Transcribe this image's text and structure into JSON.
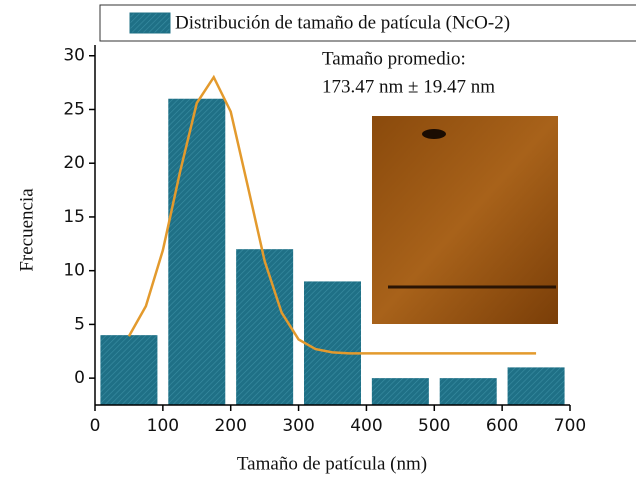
{
  "chart_data": {
    "type": "histogram",
    "legend_label": "Distribución de tamaño de patícula (NcO-2)",
    "annotation_lines": [
      "Tamaño promedio:",
      "173.47 nm ± 19.47 nm"
    ],
    "xlabel": "Tamaño de patícula  (nm)",
    "ylabel": "Frecuencia",
    "bins": [
      0,
      100,
      200,
      300,
      400,
      500,
      600,
      700
    ],
    "values": [
      4,
      26,
      12,
      9,
      0,
      0,
      1
    ],
    "color": "#1f7086",
    "fit_curve": {
      "color": "#e39a2d",
      "x": [
        50,
        75,
        100,
        125,
        150,
        175,
        200,
        225,
        250,
        275,
        300,
        325,
        350,
        375,
        400,
        425,
        450,
        475,
        500,
        525,
        550,
        575,
        600,
        625,
        650
      ],
      "values": [
        3.9,
        6.7,
        11.9,
        19.1,
        25.6,
        28.0,
        24.8,
        17.9,
        10.9,
        6.1,
        3.6,
        2.7,
        2.4,
        2.3,
        2.3,
        2.3,
        2.3,
        2.3,
        2.3,
        2.3,
        2.3,
        2.3,
        2.3,
        2.3,
        2.3
      ]
    },
    "xlim": [
      0,
      700
    ],
    "xticks": [
      0,
      100,
      200,
      300,
      400,
      500,
      600,
      700
    ],
    "ylim": [
      -2.5,
      31
    ],
    "yticks": [
      0,
      5,
      10,
      15,
      20,
      25,
      30
    ]
  }
}
